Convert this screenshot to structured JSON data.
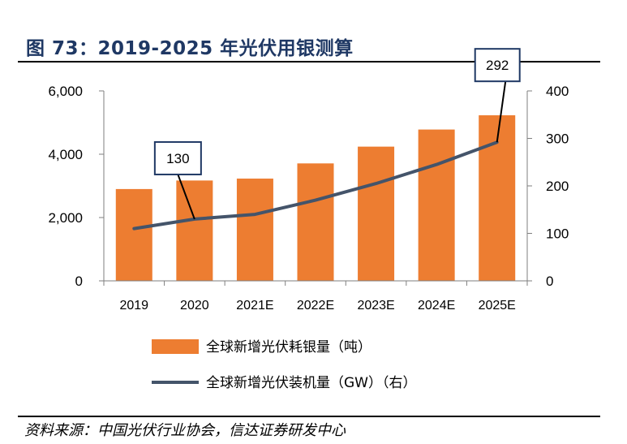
{
  "figure": {
    "title": "图 73：2019-2025 年光伏用银测算",
    "source": "资料来源：中国光伏行业协会，信达证券研发中心"
  },
  "colors": {
    "bar": "#ED7D31",
    "line": "#44546A",
    "title": "#1F3864",
    "label_border": "#1F3864"
  },
  "chart_data": {
    "type": "bar",
    "categories": [
      "2019",
      "2020",
      "2021E",
      "2022E",
      "2023E",
      "2024E",
      "2025E"
    ],
    "series": [
      {
        "name": "全球新增光伏耗银量（吨）",
        "type": "bar",
        "axis": "left",
        "values": [
          2900,
          3170,
          3230,
          3710,
          4240,
          4780,
          5230
        ]
      },
      {
        "name": "全球新增光伏装机量（GW）（右）",
        "type": "line",
        "axis": "right",
        "values": [
          110,
          130,
          140,
          170,
          205,
          245,
          292
        ]
      }
    ],
    "y_left": {
      "min": 0,
      "max": 6000,
      "ticks": [
        "0",
        "2,000",
        "4,000",
        "6,000"
      ]
    },
    "y_right": {
      "min": 0,
      "max": 400,
      "ticks": [
        "0",
        "100",
        "200",
        "300",
        "400"
      ]
    },
    "annotations": [
      {
        "category": "2020",
        "text": "130"
      },
      {
        "category": "2025E",
        "text": "292"
      }
    ],
    "legend_position": "bottom"
  }
}
